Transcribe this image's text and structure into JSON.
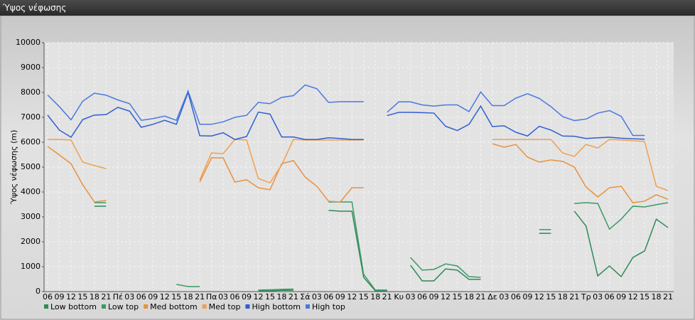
{
  "window_title": "Ύψος νέφωσης",
  "chart_data": {
    "type": "line",
    "y_label": "Ύψος νέφωσης (m)",
    "categories": [
      "06",
      "09",
      "12",
      "15",
      "18",
      "21",
      "Πέ",
      "03",
      "06",
      "09",
      "12",
      "15",
      "18",
      "21",
      "Πα",
      "03",
      "06",
      "09",
      "12",
      "15",
      "18",
      "21",
      "Σά",
      "03",
      "06",
      "09",
      "12",
      "15",
      "18",
      "21",
      "Κυ",
      "03",
      "06",
      "09",
      "12",
      "15",
      "18",
      "21",
      "Δε",
      "03",
      "06",
      "09",
      "12",
      "15",
      "18",
      "21",
      "Τρ",
      "03",
      "06",
      "09",
      "12",
      "15",
      "18",
      "21"
    ],
    "ylim": [
      0,
      10000
    ],
    "yticks": [
      0,
      1000,
      2000,
      3000,
      4000,
      5000,
      6000,
      7000,
      8000,
      9000,
      10000
    ],
    "grid": true,
    "legend": "bottom-left",
    "series": [
      {
        "name": "Low bottom",
        "color": "#2e8a55",
        "values": [
          null,
          null,
          null,
          null,
          3430,
          3430,
          null,
          null,
          null,
          null,
          null,
          null,
          null,
          null,
          null,
          null,
          null,
          null,
          30,
          30,
          50,
          50,
          null,
          null,
          3260,
          3230,
          3230,
          570,
          30,
          30,
          null,
          1060,
          430,
          430,
          910,
          860,
          490,
          490,
          null,
          null,
          null,
          null,
          2340,
          2340,
          null,
          3230,
          2630,
          630,
          1030,
          600,
          1370,
          1630,
          2910,
          2570
        ]
      },
      {
        "name": "Low top",
        "color": "#3a9a66",
        "values": [
          null,
          null,
          null,
          null,
          3570,
          3570,
          null,
          null,
          null,
          null,
          null,
          290,
          200,
          200,
          null,
          null,
          null,
          null,
          60,
          70,
          90,
          100,
          null,
          null,
          3600,
          3600,
          3600,
          690,
          60,
          60,
          null,
          1370,
          860,
          890,
          1110,
          1030,
          600,
          570,
          null,
          null,
          null,
          null,
          2490,
          2490,
          null,
          3540,
          3570,
          3540,
          2510,
          2910,
          3430,
          3400,
          3490,
          3570
        ]
      },
      {
        "name": "Med bottom",
        "color": "#e8913e",
        "values": [
          5830,
          5490,
          5140,
          4290,
          3600,
          3660,
          null,
          null,
          null,
          null,
          null,
          null,
          null,
          4400,
          5370,
          5370,
          4400,
          4490,
          4170,
          4090,
          5140,
          5260,
          4600,
          4230,
          3630,
          3600,
          4170,
          4170,
          null,
          null,
          null,
          null,
          null,
          null,
          null,
          null,
          null,
          null,
          5940,
          5800,
          5910,
          5400,
          5200,
          5290,
          5230,
          5000,
          4200,
          3800,
          4170,
          4230,
          3570,
          3630,
          3890,
          3710
        ]
      },
      {
        "name": "Med top",
        "color": "#f0a050",
        "values": [
          6110,
          6110,
          6090,
          5200,
          5060,
          4940,
          null,
          null,
          null,
          null,
          null,
          null,
          null,
          4490,
          5570,
          5540,
          6110,
          6090,
          4540,
          4370,
          5090,
          6110,
          6090,
          6090,
          6090,
          6090,
          6090,
          6090,
          null,
          null,
          null,
          null,
          null,
          null,
          null,
          null,
          null,
          null,
          6110,
          6110,
          6110,
          6110,
          6110,
          6110,
          5570,
          5430,
          5910,
          5770,
          6110,
          6090,
          6060,
          6030,
          4230,
          4060
        ]
      },
      {
        "name": "High bottom",
        "color": "#2f5fd0",
        "values": [
          7090,
          6490,
          6200,
          6910,
          7090,
          7110,
          7400,
          7250,
          6600,
          6720,
          6880,
          6720,
          8000,
          6260,
          6250,
          6380,
          6110,
          6230,
          7210,
          7130,
          6210,
          6210,
          6110,
          6110,
          6180,
          6150,
          6110,
          6110,
          null,
          7070,
          7200,
          7200,
          7190,
          7170,
          6640,
          6470,
          6720,
          7450,
          6630,
          6660,
          6400,
          6250,
          6640,
          6490,
          6250,
          6240,
          6150,
          6180,
          6200,
          6160,
          6140,
          6120,
          null,
          null
        ]
      },
      {
        "name": "High top",
        "color": "#4a78e0",
        "values": [
          7900,
          7430,
          6900,
          7650,
          7970,
          7890,
          7700,
          7550,
          6880,
          6950,
          7050,
          6880,
          8060,
          6720,
          6720,
          6820,
          7000,
          7080,
          7600,
          7550,
          7800,
          7870,
          8300,
          8150,
          7600,
          7630,
          7630,
          7630,
          null,
          7200,
          7620,
          7620,
          7500,
          7450,
          7500,
          7500,
          7230,
          8020,
          7470,
          7470,
          7770,
          7950,
          7760,
          7430,
          7030,
          6870,
          6930,
          7170,
          7270,
          7040,
          6270,
          6270,
          null,
          null
        ]
      }
    ]
  }
}
